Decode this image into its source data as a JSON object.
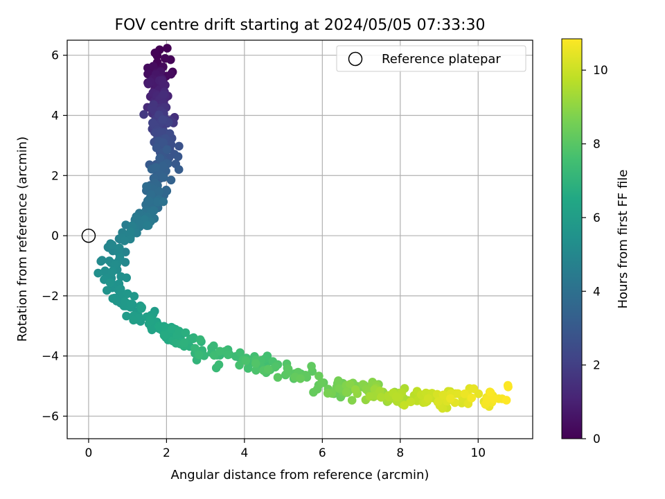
{
  "chart_data": {
    "type": "scatter",
    "title": "FOV centre drift starting at 2024/05/05 07:33:30",
    "xlabel": "Angular distance from reference (arcmin)",
    "ylabel": "Rotation from reference (arcmin)",
    "xlim": [
      -0.55,
      11.4
    ],
    "ylim": [
      -6.75,
      6.5
    ],
    "x_ticks": [
      0,
      2,
      4,
      6,
      8,
      10
    ],
    "y_ticks": [
      -6,
      -4,
      -2,
      0,
      2,
      4,
      6
    ],
    "grid": true,
    "legend": {
      "position": "top-right",
      "entries": [
        "Reference platepar"
      ]
    },
    "reference_point": {
      "name": "Reference platepar",
      "x": 0,
      "y": 0
    },
    "colorbar": {
      "label": "Hours from first FF file",
      "colormap": "viridis",
      "range": [
        0,
        10.85
      ],
      "ticks": [
        0,
        2,
        4,
        6,
        8,
        10
      ]
    },
    "path_trend": [
      {
        "h": 0.0,
        "x": 1.85,
        "y": 5.85
      },
      {
        "h": 0.3,
        "x": 1.75,
        "y": 5.45
      },
      {
        "h": 0.9,
        "x": 1.8,
        "y": 4.85
      },
      {
        "h": 1.5,
        "x": 1.8,
        "y": 4.2
      },
      {
        "h": 2.2,
        "x": 1.9,
        "y": 3.5
      },
      {
        "h": 2.8,
        "x": 1.95,
        "y": 2.9
      },
      {
        "h": 3.3,
        "x": 1.9,
        "y": 2.1
      },
      {
        "h": 3.8,
        "x": 1.7,
        "y": 1.3
      },
      {
        "h": 4.3,
        "x": 1.5,
        "y": 0.5
      },
      {
        "h": 4.7,
        "x": 1.0,
        "y": 0.05
      },
      {
        "h": 5.0,
        "x": 0.6,
        "y": -0.6
      },
      {
        "h": 5.3,
        "x": 0.55,
        "y": -1.3
      },
      {
        "h": 5.6,
        "x": 0.8,
        "y": -2.0
      },
      {
        "h": 6.0,
        "x": 1.4,
        "y": -2.6
      },
      {
        "h": 6.4,
        "x": 1.9,
        "y": -3.1
      },
      {
        "h": 6.8,
        "x": 2.4,
        "y": -3.5
      },
      {
        "h": 7.2,
        "x": 3.2,
        "y": -3.9
      },
      {
        "h": 7.6,
        "x": 4.2,
        "y": -4.1
      },
      {
        "h": 8.0,
        "x": 5.2,
        "y": -4.55
      },
      {
        "h": 8.4,
        "x": 6.3,
        "y": -5.1
      },
      {
        "h": 9.0,
        "x": 7.2,
        "y": -5.15
      },
      {
        "h": 9.6,
        "x": 8.0,
        "y": -5.4
      },
      {
        "h": 10.2,
        "x": 9.2,
        "y": -5.45
      },
      {
        "h": 10.85,
        "x": 10.6,
        "y": -5.35
      }
    ],
    "point_count": 620
  }
}
